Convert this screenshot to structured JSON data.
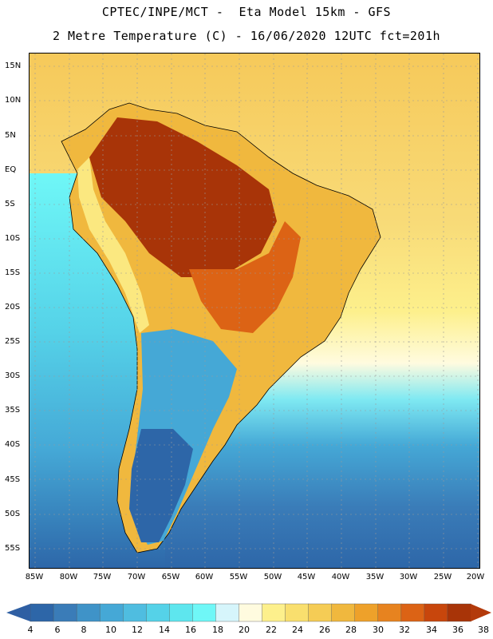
{
  "header": {
    "line1": "CPTEC/INPE/MCT -  Eta Model 15km - GFS",
    "line2": "2 Metre Temperature (C) - 16/06/2020 12UTC fct=201h"
  },
  "map": {
    "region": "South America",
    "lat_ticks": [
      "15N",
      "10N",
      "5N",
      "EQ",
      "5S",
      "10S",
      "15S",
      "20S",
      "25S",
      "30S",
      "35S",
      "40S",
      "45S",
      "50S",
      "55S"
    ],
    "lon_ticks": [
      "85W",
      "80W",
      "75W",
      "70W",
      "65W",
      "60W",
      "55W",
      "50W",
      "45W",
      "40W",
      "35W",
      "30W",
      "25W",
      "20W"
    ],
    "colors": {
      "land_border": "#000000",
      "grid": "#9a9a9a"
    }
  },
  "colorbar": {
    "labels": [
      "4",
      "6",
      "8",
      "10",
      "12",
      "14",
      "16",
      "18",
      "20",
      "22",
      "24",
      "26",
      "28",
      "30",
      "32",
      "34",
      "36",
      "38"
    ],
    "colors": [
      "#2d66a8",
      "#3a7cb8",
      "#3f93c8",
      "#45a8d6",
      "#4fbde0",
      "#55d2e8",
      "#5ee6ee",
      "#6ff7f7",
      "#d6f5fb",
      "#fffbdf",
      "#fdf08c",
      "#f9df6e",
      "#f5cc55",
      "#f0b83e",
      "#eea12a",
      "#e7831f",
      "#dc6315",
      "#c8460c",
      "#a83408"
    ],
    "under_color": "#2f5fa3",
    "over_color": "#b33a0b"
  }
}
